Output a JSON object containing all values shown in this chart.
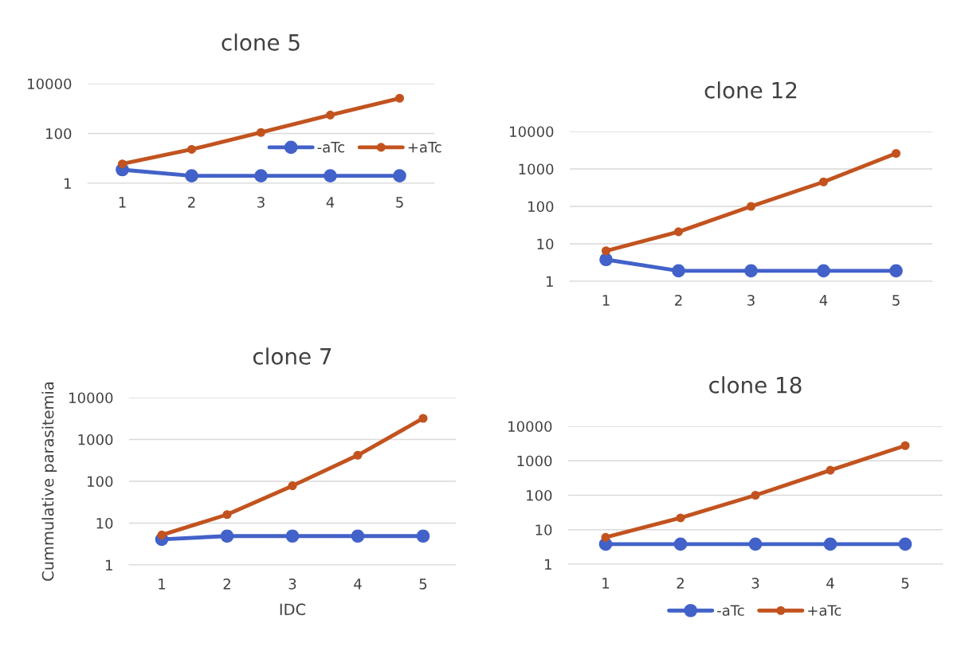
{
  "chart_data": [
    {
      "type": "line",
      "title": "clone 5",
      "categories": [
        "1",
        "2",
        "3",
        "4",
        "5"
      ],
      "log": true,
      "ylim": [
        1,
        10000
      ],
      "yticks": [
        1,
        100,
        10000
      ],
      "grid": "y",
      "marker": "circle",
      "legend": "right",
      "series": [
        {
          "name": "-aTc",
          "color": "#4262c9",
          "values": [
            3.5,
            2,
            2,
            2,
            2
          ]
        },
        {
          "name": "+aTc",
          "color": "#c2531f",
          "values": [
            6,
            23,
            110,
            550,
            2600
          ]
        }
      ]
    },
    {
      "type": "line",
      "title": "clone 12",
      "categories": [
        "1",
        "2",
        "3",
        "4",
        "5"
      ],
      "log": true,
      "ylim": [
        1,
        10000
      ],
      "yticks": [
        1,
        10,
        100,
        1000,
        10000
      ],
      "grid": "y",
      "marker": "circle",
      "series": [
        {
          "color": "#4262c9",
          "values": [
            3.8,
            1.9,
            1.9,
            1.9,
            1.9
          ]
        },
        {
          "color": "#c2531f",
          "values": [
            6.5,
            21,
            100,
            450,
            2600
          ]
        }
      ]
    },
    {
      "type": "line",
      "title": "clone 7",
      "xlabel": "IDC",
      "ylabel": "Cummulative parasitemia",
      "categories": [
        "1",
        "2",
        "3",
        "4",
        "5"
      ],
      "log": true,
      "ylim": [
        1,
        10000
      ],
      "yticks": [
        1,
        10,
        100,
        1000,
        10000
      ],
      "grid": "y",
      "marker": "circle",
      "series": [
        {
          "color": "#4262c9",
          "values": [
            4.1,
            4.9,
            4.9,
            4.9,
            4.9
          ]
        },
        {
          "color": "#c2531f",
          "values": [
            5.2,
            16,
            78,
            420,
            3200
          ]
        }
      ]
    },
    {
      "type": "line",
      "title": "clone 18",
      "categories": [
        "1",
        "2",
        "3",
        "4",
        "5"
      ],
      "log": true,
      "ylim": [
        1,
        10000
      ],
      "yticks": [
        1,
        10,
        100,
        1000,
        10000
      ],
      "grid": "y",
      "marker": "circle",
      "legend": "bottom",
      "series": [
        {
          "name": "-aTc",
          "color": "#4262c9",
          "values": [
            3.8,
            3.8,
            3.8,
            3.8,
            3.8
          ]
        },
        {
          "name": "+aTc",
          "color": "#c2531f",
          "values": [
            6,
            22,
            100,
            530,
            2750
          ]
        }
      ]
    }
  ]
}
